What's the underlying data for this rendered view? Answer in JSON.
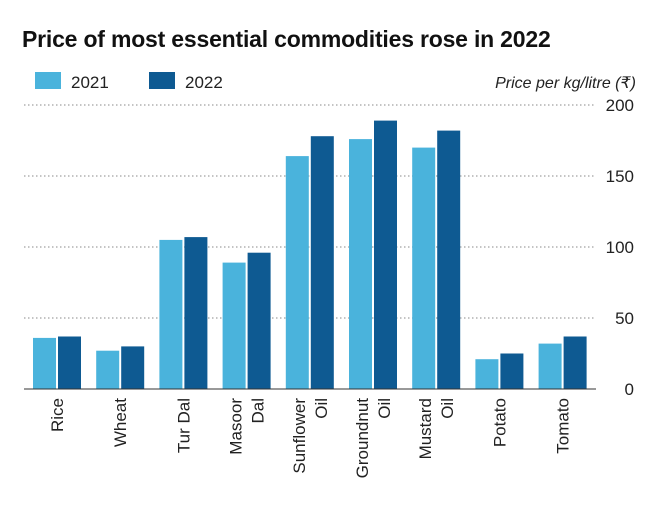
{
  "chart_data": {
    "type": "bar",
    "title": "Price of most essential commodities rose in 2022",
    "unit_label": "Price per kg/litre (₹)",
    "categories": [
      [
        "Rice"
      ],
      [
        "Wheat"
      ],
      [
        "Tur Dal"
      ],
      [
        "Masoor",
        "Dal"
      ],
      [
        "Sunflower",
        "Oil"
      ],
      [
        "Groundnut",
        "Oil"
      ],
      [
        "Mustard",
        "Oil"
      ],
      [
        "Potato"
      ],
      [
        "Tomato"
      ]
    ],
    "series": [
      {
        "name": "2021",
        "color": "#4ab3dc",
        "values": [
          36,
          27,
          105,
          89,
          164,
          176,
          170,
          21,
          32
        ]
      },
      {
        "name": "2022",
        "color": "#0e5a92",
        "values": [
          37,
          30,
          107,
          96,
          178,
          189,
          182,
          25,
          37
        ]
      }
    ],
    "ylim": [
      0,
      200
    ],
    "yticks": [
      0,
      50,
      100,
      150,
      200
    ],
    "grid": true,
    "legend_position": "top-left",
    "y_axis_position": "right"
  }
}
